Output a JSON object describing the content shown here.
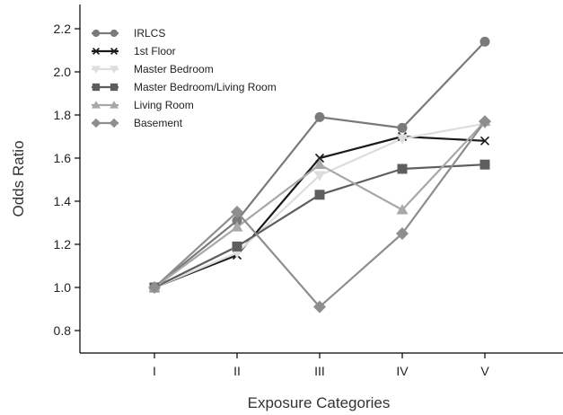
{
  "chart_data": {
    "type": "line",
    "title": "",
    "xlabel": "Exposure Categories",
    "ylabel": "Odds Ratio",
    "categories": [
      "I",
      "II",
      "III",
      "IV",
      "V"
    ],
    "ylim": [
      0.7,
      2.3
    ],
    "yticks": [
      "0.8",
      "1.0",
      "1.2",
      "1.4",
      "1.6",
      "1.8",
      "2.0",
      "2.2"
    ],
    "grid": false,
    "legend_position": "top-left",
    "series": [
      {
        "name": "IRLCS",
        "values": [
          1.0,
          1.31,
          1.79,
          1.74,
          2.14
        ],
        "color": "#7a7a7a",
        "marker": "circle"
      },
      {
        "name": "1st Floor",
        "values": [
          1.0,
          1.15,
          1.6,
          1.7,
          1.68
        ],
        "color": "#1a1a1a",
        "marker": "x"
      },
      {
        "name": "Master Bedroom",
        "values": [
          1.0,
          1.16,
          1.52,
          1.69,
          1.76
        ],
        "color": "#dddddd",
        "marker": "tri-down"
      },
      {
        "name": "Master Bedroom/Living Room",
        "values": [
          1.0,
          1.19,
          1.43,
          1.55,
          1.57
        ],
        "color": "#5e5e5e",
        "marker": "square"
      },
      {
        "name": "Living Room",
        "values": [
          1.0,
          1.28,
          1.57,
          1.36,
          1.77
        ],
        "color": "#a8a8a8",
        "marker": "tri-up"
      },
      {
        "name": "Basement",
        "values": [
          1.0,
          1.35,
          0.91,
          1.25,
          1.77
        ],
        "color": "#8e8e8e",
        "marker": "diamond"
      }
    ]
  }
}
